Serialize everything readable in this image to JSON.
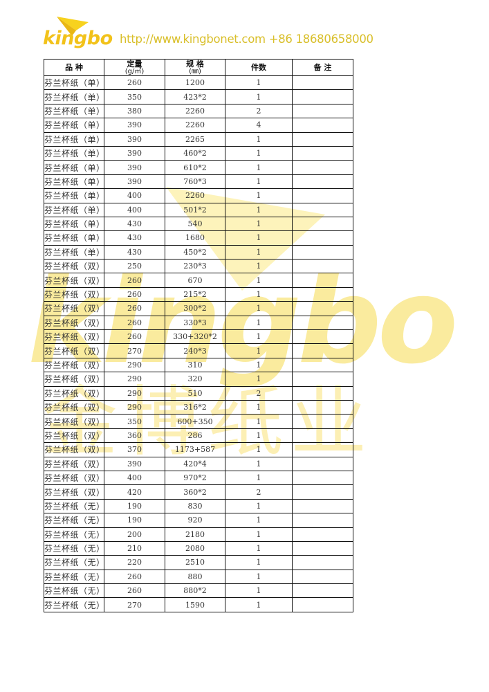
{
  "header": {
    "logo_text": "kingbo",
    "contact": "http://www.kingbonet.com  +86 18680658000",
    "brand_color": "#f2c21a"
  },
  "watermark": {
    "text": "kingbo",
    "cn": "金博纸业"
  },
  "table": {
    "columns": [
      {
        "label": "品 种",
        "unit": ""
      },
      {
        "label": "定量",
        "unit": "(g/㎡)"
      },
      {
        "label": "规 格",
        "unit": "(㎜)"
      },
      {
        "label": "件数",
        "unit": ""
      },
      {
        "label": "备 注",
        "unit": ""
      }
    ],
    "rows": [
      [
        "芬兰杯纸（单）",
        "260",
        "1200",
        "1",
        ""
      ],
      [
        "芬兰杯纸（单）",
        "350",
        "423*2",
        "1",
        ""
      ],
      [
        "芬兰杯纸（单）",
        "380",
        "2260",
        "2",
        ""
      ],
      [
        "芬兰杯纸（单）",
        "390",
        "2260",
        "4",
        ""
      ],
      [
        "芬兰杯纸（单）",
        "390",
        "2265",
        "1",
        ""
      ],
      [
        "芬兰杯纸（单）",
        "390",
        "460*2",
        "1",
        ""
      ],
      [
        "芬兰杯纸（单）",
        "390",
        "610*2",
        "1",
        ""
      ],
      [
        "芬兰杯纸（单）",
        "390",
        "760*3",
        "1",
        ""
      ],
      [
        "芬兰杯纸（单）",
        "400",
        "2260",
        "1",
        ""
      ],
      [
        "芬兰杯纸（单）",
        "400",
        "501*2",
        "1",
        ""
      ],
      [
        "芬兰杯纸（单）",
        "430",
        "540",
        "1",
        ""
      ],
      [
        "芬兰杯纸（单）",
        "430",
        "1680",
        "1",
        ""
      ],
      [
        "芬兰杯纸（单）",
        "430",
        "450*2",
        "1",
        ""
      ],
      [
        "芬兰杯纸（双）",
        "250",
        "230*3",
        "1",
        ""
      ],
      [
        "芬兰杯纸（双）",
        "260",
        "670",
        "1",
        ""
      ],
      [
        "芬兰杯纸（双）",
        "260",
        "215*2",
        "1",
        ""
      ],
      [
        "芬兰杯纸（双）",
        "260",
        "300*2",
        "1",
        ""
      ],
      [
        "芬兰杯纸（双）",
        "260",
        "330*3",
        "1",
        ""
      ],
      [
        "芬兰杯纸（双）",
        "260",
        "330+320*2",
        "1",
        ""
      ],
      [
        "芬兰杯纸（双）",
        "270",
        "240*3",
        "1",
        ""
      ],
      [
        "芬兰杯纸（双）",
        "290",
        "310",
        "1",
        ""
      ],
      [
        "芬兰杯纸（双）",
        "290",
        "320",
        "1",
        ""
      ],
      [
        "芬兰杯纸（双）",
        "290",
        "510",
        "2",
        ""
      ],
      [
        "芬兰杯纸（双）",
        "290",
        "316*2",
        "1",
        ""
      ],
      [
        "芬兰杯纸（双）",
        "350",
        "600+350",
        "1",
        ""
      ],
      [
        "芬兰杯纸（双）",
        "360",
        "286",
        "1",
        ""
      ],
      [
        "芬兰杯纸（双）",
        "370",
        "1173+587",
        "1",
        ""
      ],
      [
        "芬兰杯纸（双）",
        "390",
        "420*4",
        "1",
        ""
      ],
      [
        "芬兰杯纸（双）",
        "400",
        "970*2",
        "1",
        ""
      ],
      [
        "芬兰杯纸（双）",
        "420",
        "360*2",
        "2",
        ""
      ],
      [
        "芬兰杯纸（无）",
        "190",
        "830",
        "1",
        ""
      ],
      [
        "芬兰杯纸（无）",
        "190",
        "920",
        "1",
        ""
      ],
      [
        "芬兰杯纸（无）",
        "200",
        "2180",
        "1",
        ""
      ],
      [
        "芬兰杯纸（无）",
        "210",
        "2080",
        "1",
        ""
      ],
      [
        "芬兰杯纸（无）",
        "220",
        "2510",
        "1",
        ""
      ],
      [
        "芬兰杯纸（无）",
        "260",
        "880",
        "1",
        ""
      ],
      [
        "芬兰杯纸（无）",
        "260",
        "880*2",
        "1",
        ""
      ],
      [
        "芬兰杯纸（无）",
        "270",
        "1590",
        "1",
        ""
      ]
    ]
  }
}
